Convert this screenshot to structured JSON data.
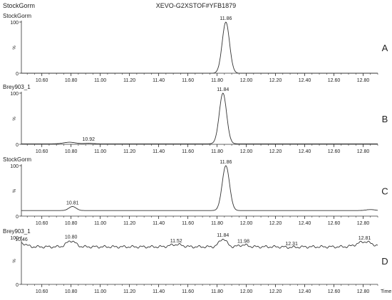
{
  "header": {
    "left_label": "StockGorm",
    "title": "XEVO-G2XSTOF#YFB1879"
  },
  "chart_data": [
    {
      "type": "line",
      "panel_letter": "A",
      "trace_label": "StockGorm",
      "x_ticks": [
        "10.60",
        "10.80",
        "11.00",
        "11.20",
        "11.40",
        "11.60",
        "11.80",
        "12.00",
        "12.20",
        "12.40",
        "12.60",
        "12.80"
      ],
      "xlim": [
        10.46,
        12.9
      ],
      "ylim": [
        0,
        100
      ],
      "y_ticks": [
        "100",
        "0"
      ],
      "ylabel": "%",
      "baseline": 0,
      "peaks": [
        {
          "x": 11.86,
          "y": 100,
          "width": 0.025
        }
      ],
      "peak_labels": [
        {
          "x": 11.86,
          "y": 100,
          "text": "11.86"
        }
      ]
    },
    {
      "type": "line",
      "panel_letter": "B",
      "trace_label": "Brey903_1",
      "x_ticks": [
        "10.60",
        "10.80",
        "11.00",
        "11.20",
        "11.40",
        "11.60",
        "11.80",
        "12.00",
        "12.20",
        "12.40",
        "12.60",
        "12.80"
      ],
      "xlim": [
        10.46,
        12.9
      ],
      "ylim": [
        0,
        100
      ],
      "y_ticks": [
        "100",
        "0"
      ],
      "ylabel": "%",
      "baseline": 1,
      "peaks": [
        {
          "x": 10.79,
          "y": 4,
          "width": 0.04
        },
        {
          "x": 10.92,
          "y": 2,
          "width": 0.03
        },
        {
          "x": 11.84,
          "y": 100,
          "width": 0.025
        }
      ],
      "peak_labels": [
        {
          "x": 10.92,
          "y": 3,
          "text": "10.92"
        },
        {
          "x": 11.84,
          "y": 100,
          "text": "11.84"
        }
      ]
    },
    {
      "type": "line",
      "panel_letter": "C",
      "trace_label": "StockGorm",
      "x_ticks": [
        "10.60",
        "10.80",
        "11.00",
        "11.20",
        "11.40",
        "11.60",
        "11.80",
        "12.00",
        "12.20",
        "12.40",
        "12.60",
        "12.80"
      ],
      "xlim": [
        10.46,
        12.9
      ],
      "ylim": [
        0,
        100
      ],
      "y_ticks": [
        "100",
        "0"
      ],
      "ylabel": "%",
      "baseline": 11,
      "peaks": [
        {
          "x": 10.81,
          "y": 19,
          "width": 0.025
        },
        {
          "x": 11.86,
          "y": 100,
          "width": 0.025
        },
        {
          "x": 12.85,
          "y": 13,
          "width": 0.03
        }
      ],
      "peak_labels": [
        {
          "x": 10.81,
          "y": 19,
          "text": "10.81"
        },
        {
          "x": 11.86,
          "y": 100,
          "text": "11.86"
        }
      ]
    },
    {
      "type": "line",
      "panel_letter": "D",
      "trace_label": "Brey903_1",
      "x_ticks": [
        "10.60",
        "10.80",
        "11.00",
        "11.20",
        "11.40",
        "11.60",
        "11.80",
        "12.00",
        "12.20",
        "12.40",
        "12.60",
        "12.80"
      ],
      "xlim": [
        10.46,
        12.9
      ],
      "ylim": [
        0,
        100
      ],
      "y_ticks": [
        "100",
        "0"
      ],
      "ylabel": "%",
      "xlabel": "Time",
      "baseline": 80,
      "noise": 3,
      "peaks": [
        {
          "x": 10.46,
          "y": 88,
          "width": 0.03
        },
        {
          "x": 10.8,
          "y": 93,
          "width": 0.03
        },
        {
          "x": 11.52,
          "y": 85,
          "width": 0.04
        },
        {
          "x": 11.84,
          "y": 97,
          "width": 0.025
        },
        {
          "x": 11.98,
          "y": 84,
          "width": 0.03
        },
        {
          "x": 12.31,
          "y": 79,
          "width": 0.04
        },
        {
          "x": 12.81,
          "y": 91,
          "width": 0.05
        }
      ],
      "peak_labels": [
        {
          "x": 10.46,
          "y": 88,
          "text": "10.46"
        },
        {
          "x": 10.8,
          "y": 93,
          "text": "10.80"
        },
        {
          "x": 11.52,
          "y": 85,
          "text": "11.52"
        },
        {
          "x": 11.84,
          "y": 97,
          "text": "11.84"
        },
        {
          "x": 11.98,
          "y": 84,
          "text": "11.98"
        },
        {
          "x": 12.31,
          "y": 79,
          "text": "12.31"
        },
        {
          "x": 12.81,
          "y": 91,
          "text": "12.81"
        }
      ]
    }
  ]
}
